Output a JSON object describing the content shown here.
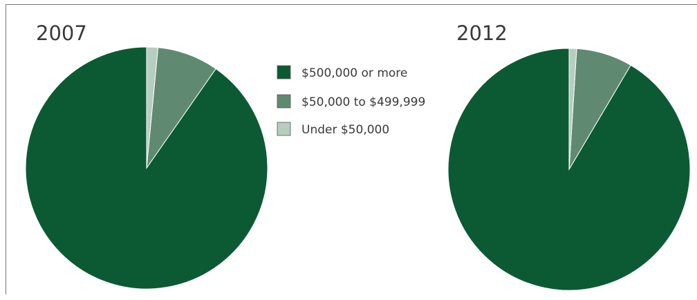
{
  "chart_data": {
    "type": "pie",
    "legend_position": "center-top",
    "series": [
      {
        "label": "$500,000 or more",
        "color": "#0c5a34"
      },
      {
        "label": "$50,000 to $499,999",
        "color": "#5f8a71"
      },
      {
        "label": "Under $50,000",
        "color": "#b6cdbf"
      }
    ],
    "charts": [
      {
        "title": "2007",
        "values": [
          90.3,
          8.2,
          1.5
        ]
      },
      {
        "title": "2012",
        "values": [
          91.5,
          7.5,
          1.0
        ]
      }
    ]
  }
}
